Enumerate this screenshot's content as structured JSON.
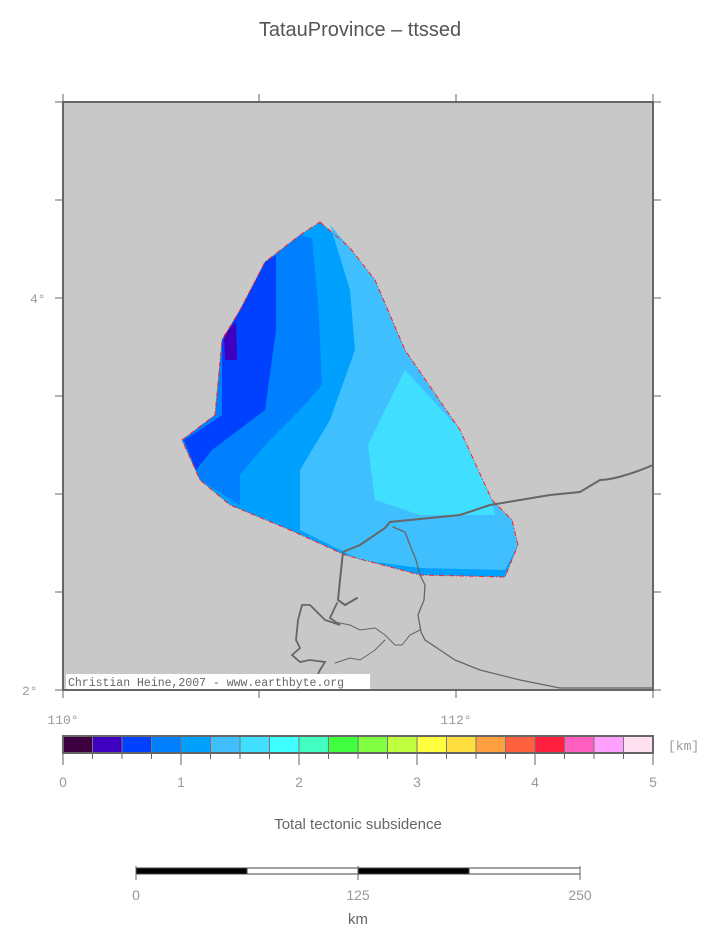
{
  "title": "TatauProvince – ttssed",
  "map": {
    "background_color": "#c8c8c8",
    "lon_labels": [
      "110°",
      "112°"
    ],
    "lat_labels": [
      "4°",
      "2°"
    ],
    "credit": "Christian Heine,2007 - www.earthbyte.org",
    "boundary_color": "#ff2020",
    "coastline_color": "#666666",
    "region_fill_values": [
      0.875,
      1.125,
      1.375,
      1.625,
      0.625,
      0.375
    ]
  },
  "colorbar": {
    "unit": "[km]",
    "ticks": [
      "0",
      "1",
      "2",
      "3",
      "4",
      "5"
    ],
    "range": [
      0,
      5
    ],
    "step": 0.25,
    "colors": [
      "#3c0040",
      "#4000c0",
      "#0040ff",
      "#0080ff",
      "#00a0ff",
      "#40bfff",
      "#40dfff",
      "#40ffff",
      "#40ffc0",
      "#40ff40",
      "#80ff40",
      "#c0ff40",
      "#ffff40",
      "#ffdf40",
      "#ffa040",
      "#ff6040",
      "#ff2040",
      "#ff60c0",
      "#ffa0ff",
      "#ffe0f0"
    ],
    "label": "Total tectonic subsidence"
  },
  "scalebar": {
    "ticks": [
      "0",
      "125",
      "250"
    ],
    "unit": "km"
  }
}
